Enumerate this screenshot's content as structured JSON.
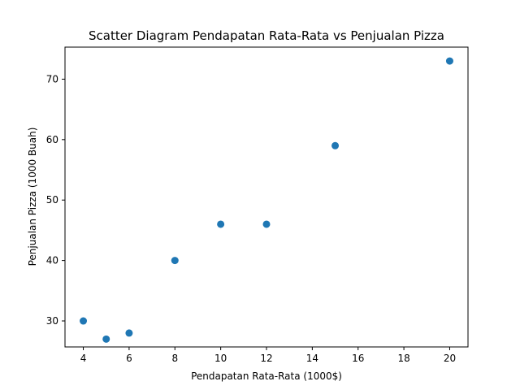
{
  "chart_data": {
    "type": "scatter",
    "title": "Scatter Diagram Pendapatan Rata-Rata vs Penjualan Pizza",
    "xlabel": "Pendapatan Rata-Rata (1000$)",
    "ylabel": "Penjualan Pizza (1000 Buah)",
    "xlim": [
      3.2,
      20.8
    ],
    "ylim": [
      25.7,
      75.3
    ],
    "xticks": [
      4,
      6,
      8,
      10,
      12,
      14,
      16,
      18,
      20
    ],
    "yticks": [
      30,
      40,
      50,
      60,
      70
    ],
    "grid": false,
    "point_color": "#1f77b4",
    "points": [
      {
        "x": 4,
        "y": 30
      },
      {
        "x": 5,
        "y": 27
      },
      {
        "x": 6,
        "y": 28
      },
      {
        "x": 8,
        "y": 40
      },
      {
        "x": 10,
        "y": 46
      },
      {
        "x": 12,
        "y": 46
      },
      {
        "x": 15,
        "y": 59
      },
      {
        "x": 20,
        "y": 73
      }
    ]
  }
}
